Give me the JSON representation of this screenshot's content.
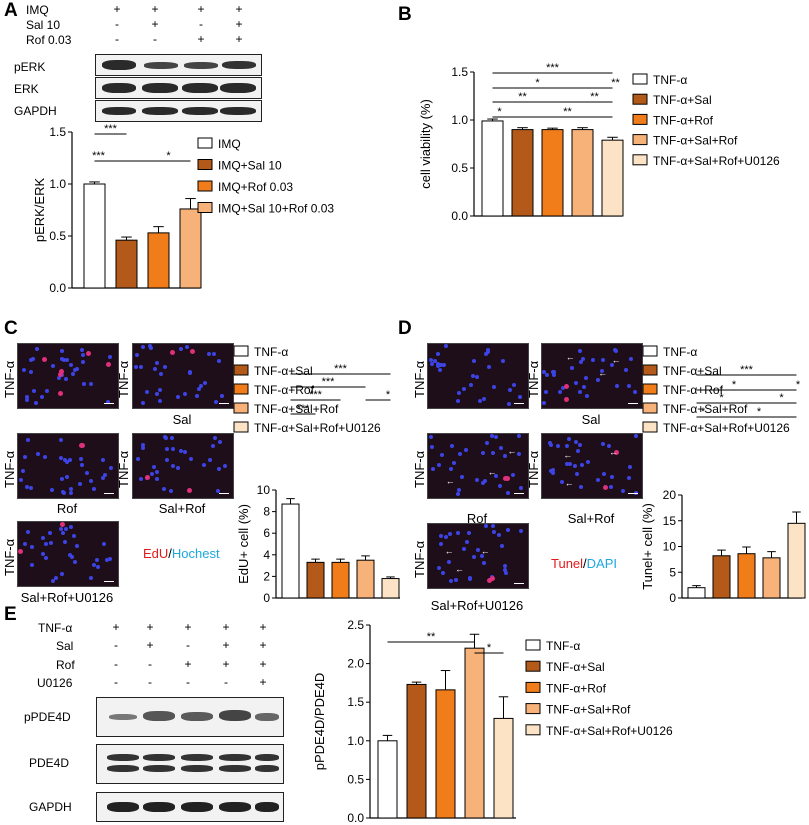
{
  "panel_letters": {
    "A": "A",
    "B": "B",
    "C": "C",
    "D": "D",
    "E": "E"
  },
  "colors": {
    "white": "#ffffff",
    "brown": "#b35a1a",
    "orange": "#f07c1a",
    "light_orange": "#f7b27a",
    "peach": "#fde3c5",
    "edu_red": "#e31a1c",
    "hoechst_blue": "#1ca7e0",
    "tunel_red": "#e31a1c",
    "dapi_blue": "#1ca7e0"
  },
  "panelA": {
    "treatments": {
      "rows": [
        "IMQ",
        "Sal 10",
        "Rof 0.03"
      ],
      "values": [
        [
          "+",
          "+",
          "+",
          "+"
        ],
        [
          "-",
          "+",
          "-",
          "+"
        ],
        [
          "-",
          "-",
          "+",
          "+"
        ]
      ]
    },
    "blot_labels": [
      "pERK",
      "ERK",
      "GAPDH"
    ]
  },
  "panelC": {
    "image_labels": {
      "left": "TNF-α",
      "sal": "Sal",
      "rof": "Rof",
      "salrof": "Sal+Rof",
      "salrofu": "Sal+Rof+U0126"
    },
    "stain_a": "EdU",
    "stain_sep": "/",
    "stain_b": "Hochest"
  },
  "panelD": {
    "image_labels": {
      "left": "TNF-α",
      "sal": "Sal",
      "rof": "Rof",
      "salrof": "Sal+Rof",
      "salrofu": "Sal+Rof+U0126"
    },
    "stain_a": "Tunel",
    "stain_sep": "/",
    "stain_b": "DAPI"
  },
  "panelE": {
    "treatments": {
      "rows": [
        "TNF-α",
        "Sal",
        "Rof",
        "U0126"
      ],
      "values": [
        [
          "+",
          "+",
          "+",
          "+",
          "+"
        ],
        [
          "-",
          "+",
          "-",
          "+",
          "+"
        ],
        [
          "-",
          "-",
          "+",
          "+",
          "+"
        ],
        [
          "-",
          "-",
          "-",
          "-",
          "+"
        ]
      ]
    },
    "blot_labels": [
      "pPDE4D",
      "PDE4D",
      "GAPDH"
    ]
  },
  "chart_data": [
    {
      "id": "A",
      "type": "bar",
      "categories": [
        "IMQ",
        "IMQ+Sal 10",
        "IMQ+Rof 0.03",
        "IMQ+Sal 10+Rof 0.03"
      ],
      "values": [
        1.0,
        0.46,
        0.53,
        0.76
      ],
      "errors": [
        0.02,
        0.03,
        0.06,
        0.1
      ],
      "ylabel": "pERK/ERK",
      "ylim": [
        0,
        1.5
      ],
      "yticks": [
        "0.0",
        "0.5",
        "1.0",
        "1.5"
      ],
      "legend": [
        "IMQ",
        "IMQ+Sal 10",
        "IMQ+Rof 0.03",
        "IMQ+Sal 10+Rof 0.03"
      ],
      "significance": [
        {
          "from": 0,
          "to": 1,
          "label": "***"
        },
        {
          "from": 0,
          "to": 1,
          "label": "***"
        },
        {
          "from": 1,
          "to": 3,
          "label": "*"
        }
      ]
    },
    {
      "id": "B",
      "type": "bar",
      "categories": [
        "TNF-α",
        "TNF-α+Sal",
        "TNF-α+Rof",
        "TNF-α+Sal+Rof",
        "TNF-α+Sal+Rof+U0126"
      ],
      "values": [
        0.99,
        0.9,
        0.9,
        0.9,
        0.79
      ],
      "errors": [
        0.02,
        0.02,
        0.015,
        0.02,
        0.03
      ],
      "ylabel": "cell viability (%)",
      "ylim": [
        0,
        1.5
      ],
      "yticks": [
        "0.0",
        "0.5",
        "1.0",
        "1.5"
      ],
      "legend": [
        "TNF-α",
        "TNF-α+Sal",
        "TNF-α+Rof",
        "TNF-α+Sal+Rof",
        "TNF-α+Sal+Rof+U0126"
      ],
      "significance": [
        {
          "from": 0,
          "to": 4,
          "label": "***"
        },
        {
          "from": 0,
          "to": 3,
          "label": "*"
        },
        {
          "from": 3,
          "to": 4,
          "label": "**"
        },
        {
          "from": 0,
          "to": 2,
          "label": "**"
        },
        {
          "from": 2,
          "to": 4,
          "label": "**"
        },
        {
          "from": 0,
          "to": 1,
          "label": "*"
        },
        {
          "from": 1,
          "to": 4,
          "label": "**"
        }
      ]
    },
    {
      "id": "C",
      "type": "bar",
      "categories": [
        "TNF-α",
        "TNF-α+Sal",
        "TNF-α+Rof",
        "TNF-α+Sal+Rof",
        "TNF-α+Sal+Rof+U0126"
      ],
      "values": [
        8.7,
        3.3,
        3.3,
        3.5,
        1.8
      ],
      "errors": [
        0.5,
        0.3,
        0.3,
        0.4,
        0.15
      ],
      "ylabel": "EdU+ cell (%)",
      "ylim": [
        0,
        10
      ],
      "yticks": [
        "0",
        "2",
        "4",
        "6",
        "8",
        "10"
      ],
      "legend": [
        "TNF-α",
        "TNF-α+Sal",
        "TNF-α+Rof",
        "TNF-α+Sal+Rof",
        "TNF-α+Sal+Rof+U0126"
      ],
      "significance": [
        {
          "from": 0,
          "to": 4,
          "label": "***"
        },
        {
          "from": 0,
          "to": 3,
          "label": "***"
        },
        {
          "from": 0,
          "to": 2,
          "label": "***"
        },
        {
          "from": 3,
          "to": 4,
          "label": "*"
        },
        {
          "from": 0,
          "to": 1,
          "label": "***"
        }
      ]
    },
    {
      "id": "D",
      "type": "bar",
      "categories": [
        "TNF-α",
        "TNF-α+Sal",
        "TNF-α+Rof",
        "TNF-α+Sal+Rof",
        "TNF-α+Sal+Rof+U0126"
      ],
      "values": [
        2.0,
        8.2,
        8.6,
        7.8,
        14.5
      ],
      "errors": [
        0.4,
        1.1,
        1.3,
        1.2,
        2.2
      ],
      "ylabel": "Tunel+ cell (%)",
      "ylim": [
        0,
        20
      ],
      "yticks": [
        "0",
        "5",
        "10",
        "15",
        "20"
      ],
      "legend": [
        "TNF-α",
        "TNF-α+Sal",
        "TNF-α+Rof",
        "TNF-α+Sal+Rof",
        "TNF-α+Sal+Rof+U0126"
      ],
      "significance": [
        {
          "from": 0,
          "to": 4,
          "label": "***"
        },
        {
          "from": 0,
          "to": 3,
          "label": "*"
        },
        {
          "from": 3,
          "to": 4,
          "label": "*"
        },
        {
          "from": 0,
          "to": 2,
          "label": "*"
        },
        {
          "from": 2,
          "to": 4,
          "label": "*"
        },
        {
          "from": 0,
          "to": 1,
          "label": "*"
        },
        {
          "from": 1,
          "to": 4,
          "label": "*"
        }
      ]
    },
    {
      "id": "E",
      "type": "bar",
      "categories": [
        "TNF-α",
        "TNF-α+Sal",
        "TNF-α+Rof",
        "TNF-α+Sal+Rof",
        "TNF-α+Sal+Rof+U0126"
      ],
      "values": [
        1.0,
        1.73,
        1.66,
        2.2,
        1.29
      ],
      "errors": [
        0.07,
        0.03,
        0.25,
        0.18,
        0.28
      ],
      "ylabel": "pPDE4D/PDE4D",
      "ylim": [
        0,
        2.5
      ],
      "yticks": [
        "0.0",
        "0.5",
        "1.0",
        "1.5",
        "2.0",
        "2.5"
      ],
      "legend": [
        "TNF-α",
        "TNF-α+Sal",
        "TNF-α+Rof",
        "TNF-α+Sal+Rof",
        "TNF-α+Sal+Rof+U0126"
      ],
      "significance": [
        {
          "from": 0,
          "to": 3,
          "label": "**"
        },
        {
          "from": 3,
          "to": 4,
          "label": "*"
        }
      ]
    }
  ]
}
